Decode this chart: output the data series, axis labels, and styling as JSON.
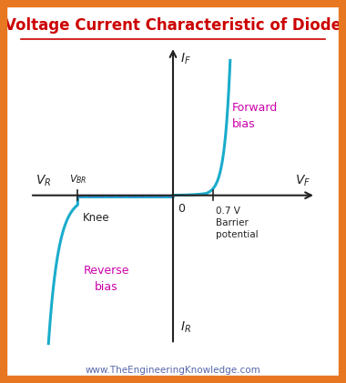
{
  "title": "Voltage Current Characteristic of Diode",
  "title_color": "#cc0000",
  "title_fontsize": 12,
  "background_color": "#ffffff",
  "border_color": "#e87722",
  "curve_color": "#1aaccc",
  "forward_bias_label": "Forward\nbias",
  "reverse_bias_label": "Reverse\nbias",
  "label_color": "#cc00aa",
  "axis_color": "#222222",
  "dashed_color": "#4488cc",
  "website": "www.TheEngineeringKnowledge.com",
  "website_color": "#5566aa",
  "xlim": [
    -4,
    4
  ],
  "ylim": [
    -4,
    4
  ],
  "vbr_x": -2.5,
  "barrier_x": 1.05
}
